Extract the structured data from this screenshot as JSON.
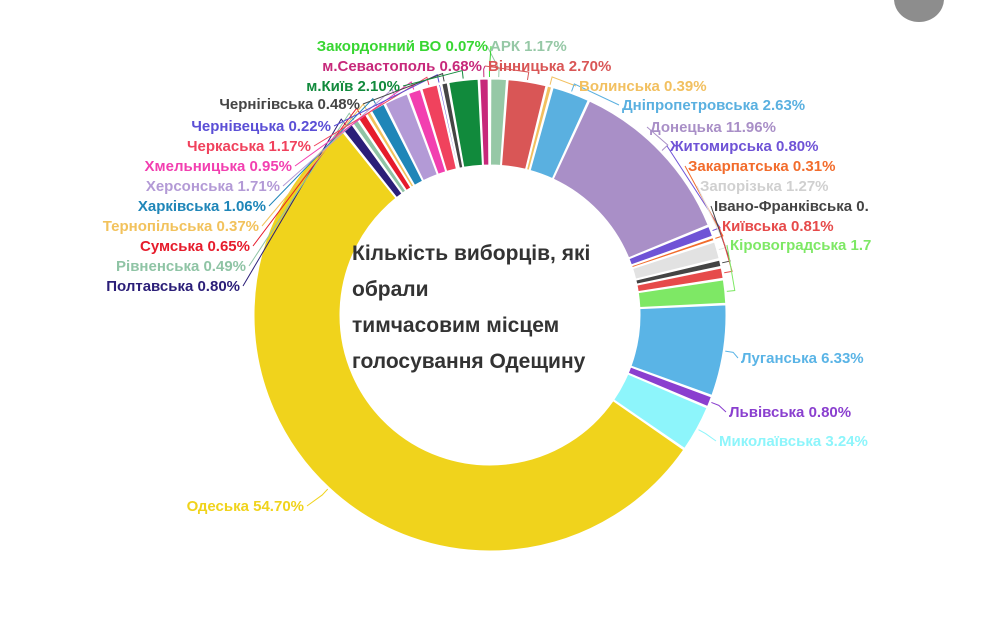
{
  "chart_data": {
    "type": "pie",
    "donut": true,
    "title_lines": [
      "Кількість виборців, які",
      "обрали",
      "тимчасовим місцем",
      "голосування Одещину"
    ],
    "slices": [
      {
        "name": "АРК",
        "label": "АРК 1.17%",
        "value": 1.17,
        "color": "#96c8a6"
      },
      {
        "name": "Вінницька",
        "label": "Вінницька 2.70%",
        "value": 2.7,
        "color": "#d95656"
      },
      {
        "name": "Волинська",
        "label": "Волинська 0.39%",
        "value": 0.39,
        "color": "#f2c060"
      },
      {
        "name": "Дніпропетровська",
        "label": "Дніпропетровська 2.63%",
        "value": 2.63,
        "color": "#5ab0e0"
      },
      {
        "name": "Донецька",
        "label": "Донецька 11.96%",
        "value": 11.96,
        "color": "#a98fc7"
      },
      {
        "name": "Житомирська",
        "label": "Житомирська 0.80%",
        "value": 0.8,
        "color": "#6f53d6"
      },
      {
        "name": "Закарпатська",
        "label": "Закарпатська 0.31%",
        "value": 0.31,
        "color": "#f26c2c"
      },
      {
        "name": "Запорізька",
        "label": "Запорізька 1.27%",
        "value": 1.27,
        "color": "#e2e2e2"
      },
      {
        "name": "Івано-Франківська",
        "label": "Івано-Франківська 0.",
        "value": 0.55,
        "color": "#444444"
      },
      {
        "name": "Київська",
        "label": "Київська 0.81%",
        "value": 0.81,
        "color": "#e64a4a"
      },
      {
        "name": "Кіровоградська",
        "label": "Кіровоградська 1.7",
        "value": 1.7,
        "color": "#7ee865"
      },
      {
        "name": "Луганська",
        "label": "Луганська 6.33%",
        "value": 6.33,
        "color": "#5ab4e6"
      },
      {
        "name": "Львівська",
        "label": "Львівська 0.80%",
        "value": 0.8,
        "color": "#8a3fcf"
      },
      {
        "name": "Миколаївська",
        "label": "Миколаївська 3.24%",
        "value": 3.24,
        "color": "#8df5fb"
      },
      {
        "name": "Одеська",
        "label": "Одеська 54.70%",
        "value": 54.7,
        "color": "#f0d31c"
      },
      {
        "name": "Полтавська",
        "label": "Полтавська 0.80%",
        "value": 0.8,
        "color": "#2b1e78"
      },
      {
        "name": "Рівненська",
        "label": "Рівненська 0.49%",
        "value": 0.49,
        "color": "#8fc4a5"
      },
      {
        "name": "Сумська",
        "label": "Сумська 0.65%",
        "value": 0.65,
        "color": "#e61c2c"
      },
      {
        "name": "Тернопільська",
        "label": "Тернопільська 0.37%",
        "value": 0.37,
        "color": "#f2c25c"
      },
      {
        "name": "Харківська",
        "label": "Харківська 1.06%",
        "value": 1.06,
        "color": "#1f86b8"
      },
      {
        "name": "Херсонська",
        "label": "Херсонська 1.71%",
        "value": 1.71,
        "color": "#b39ad6"
      },
      {
        "name": "Хмельницька",
        "label": "Хмельницька 0.95%",
        "value": 0.95,
        "color": "#f23fb0"
      },
      {
        "name": "Черкаська",
        "label": "Черкаська 1.17%",
        "value": 1.17,
        "color": "#f0425d"
      },
      {
        "name": "Чернівецька",
        "label": "Чернівецька 0.22%",
        "value": 0.22,
        "color": "#5b4fd6"
      },
      {
        "name": "Чернігівська",
        "label": "Чернігівська 0.48%",
        "value": 0.48,
        "color": "#454545"
      },
      {
        "name": "м.Київ",
        "label": "м.Київ 2.10%",
        "value": 2.1,
        "color": "#118a3c"
      },
      {
        "name": "м.Севастополь",
        "label": "м.Севастополь 0.68%",
        "value": 0.68,
        "color": "#c7287a"
      },
      {
        "name": "Закордонний ВО",
        "label": "Закордонний ВО 0.07%",
        "value": 0.07,
        "color": "#38d632"
      }
    ],
    "legend": "none"
  }
}
